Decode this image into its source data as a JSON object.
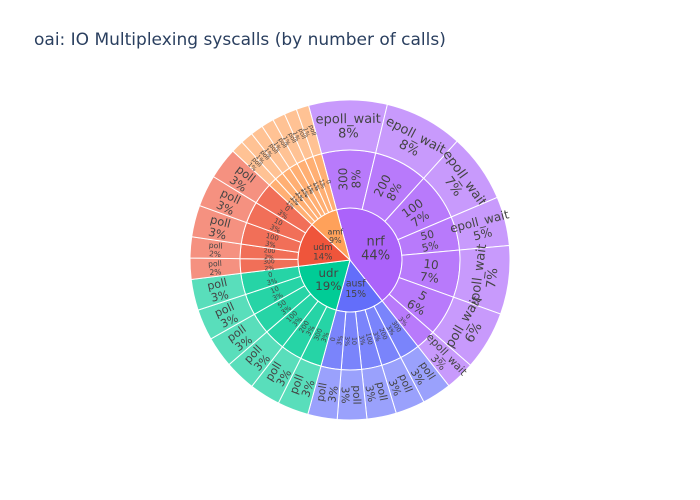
{
  "title": "oai: IO Multiplexing syscalls (by number of calls)",
  "chart_data": {
    "type": "sunburst",
    "title": "oai: IO Multiplexing syscalls (by number of calls)",
    "rings": [
      "service",
      "bucket",
      "syscall"
    ],
    "children": [
      {
        "label": "nrf",
        "text": "44%",
        "value": 44,
        "color": "#ab63fa",
        "children": [
          {
            "label": "300",
            "text": "8%",
            "value": 8,
            "children": [
              {
                "label": "epoll_wait",
                "text": "8%",
                "value": 8
              }
            ]
          },
          {
            "label": "200",
            "text": "8%",
            "value": 8,
            "children": [
              {
                "label": "epoll_wait",
                "text": "8%",
                "value": 8
              }
            ]
          },
          {
            "label": "100",
            "text": "7%",
            "value": 7,
            "children": [
              {
                "label": "epoll_wait",
                "text": "7%",
                "value": 7
              }
            ]
          },
          {
            "label": "50",
            "text": "5%",
            "value": 5,
            "children": [
              {
                "label": "epoll_wait",
                "text": "5%",
                "value": 5
              }
            ]
          },
          {
            "label": "10",
            "text": "7%",
            "value": 7,
            "children": [
              {
                "label": "epoll_wait",
                "text": "7%",
                "value": 7
              }
            ]
          },
          {
            "label": "5",
            "text": "6%",
            "value": 6,
            "children": [
              {
                "label": "epoll_wait",
                "text": "6%",
                "value": 6
              }
            ]
          },
          {
            "label": "0",
            "text": "3%",
            "value": 3,
            "children": [
              {
                "label": "epoll_wait",
                "text": "3%",
                "value": 3
              }
            ]
          }
        ]
      },
      {
        "label": "ausf",
        "text": "15%",
        "value": 15,
        "color": "#636efa",
        "children": [
          {
            "label": "300",
            "text": "3%",
            "value": 3,
            "children": [
              {
                "label": "poll",
                "text": "3%",
                "value": 3
              }
            ]
          },
          {
            "label": "200",
            "text": "3%",
            "value": 3,
            "children": [
              {
                "label": "poll",
                "text": "3%",
                "value": 3
              }
            ]
          },
          {
            "label": "100",
            "text": "3%",
            "value": 3,
            "children": [
              {
                "label": "poll",
                "text": "3%",
                "value": 3
              }
            ]
          },
          {
            "label": "10",
            "text": "3%",
            "value": 3,
            "children": [
              {
                "label": "poll",
                "text": "3%",
                "value": 3
              }
            ]
          },
          {
            "label": "0",
            "text": "3%",
            "value": 3,
            "children": [
              {
                "label": "poll",
                "text": "3%",
                "value": 3
              }
            ]
          }
        ]
      },
      {
        "label": "udr",
        "text": "19%",
        "value": 19,
        "color": "#00cc96",
        "children": [
          {
            "label": "300",
            "text": "3%",
            "value": 3,
            "children": [
              {
                "label": "poll",
                "text": "3%",
                "value": 3
              }
            ]
          },
          {
            "label": "200",
            "text": "3%",
            "value": 3,
            "children": [
              {
                "label": "poll",
                "text": "3%",
                "value": 3
              }
            ]
          },
          {
            "label": "100",
            "text": "3%",
            "value": 3,
            "children": [
              {
                "label": "poll",
                "text": "3%",
                "value": 3
              }
            ]
          },
          {
            "label": "50",
            "text": "3%",
            "value": 3,
            "children": [
              {
                "label": "poll",
                "text": "3%",
                "value": 3
              }
            ]
          },
          {
            "label": "10",
            "text": "3%",
            "value": 3,
            "children": [
              {
                "label": "poll",
                "text": "3%",
                "value": 3
              }
            ]
          },
          {
            "label": "0",
            "text": "3%",
            "value": 3,
            "children": [
              {
                "label": "poll",
                "text": "3%",
                "value": 3
              }
            ]
          }
        ]
      },
      {
        "label": "udm",
        "text": "14%",
        "value": 14,
        "color": "#ef553b",
        "children": [
          {
            "label": "300",
            "text": "2%",
            "value": 2,
            "children": [
              {
                "label": "poll",
                "text": "2%",
                "value": 2
              }
            ]
          },
          {
            "label": "200",
            "text": "2%",
            "value": 2,
            "children": [
              {
                "label": "poll",
                "text": "2%",
                "value": 2
              }
            ]
          },
          {
            "label": "100",
            "text": "3%",
            "value": 3,
            "children": [
              {
                "label": "poll",
                "text": "3%",
                "value": 3
              }
            ]
          },
          {
            "label": "10",
            "text": "3%",
            "value": 3,
            "children": [
              {
                "label": "poll",
                "text": "3%",
                "value": 3
              }
            ]
          },
          {
            "label": "0",
            "text": "3%",
            "value": 3,
            "children": [
              {
                "label": "poll",
                "text": "3%",
                "value": 3
              }
            ]
          }
        ]
      },
      {
        "label": "amf",
        "text": "9%",
        "value": 9,
        "color": "#ffa15a",
        "children": [
          {
            "label": "300",
            "text": "1%",
            "value": 1,
            "children": [
              {
                "label": "poll",
                "text": "1%",
                "value": 1
              }
            ]
          },
          {
            "label": "200",
            "text": "1%",
            "value": 1,
            "children": [
              {
                "label": "poll",
                "text": "1%",
                "value": 1
              }
            ]
          },
          {
            "label": "100",
            "text": "1%",
            "value": 1,
            "children": [
              {
                "label": "poll",
                "text": "1%",
                "value": 1
              }
            ]
          },
          {
            "label": "50",
            "text": "1%",
            "value": 1,
            "children": [
              {
                "label": "poll",
                "text": "1%",
                "value": 1
              }
            ]
          },
          {
            "label": "10",
            "text": "1%",
            "value": 1,
            "children": [
              {
                "label": "poll",
                "text": "1%",
                "value": 1
              }
            ]
          },
          {
            "label": "5",
            "text": "1%",
            "value": 1,
            "children": [
              {
                "label": "poll",
                "text": "1%",
                "value": 1
              }
            ]
          },
          {
            "label": "0",
            "text": "1%",
            "value": 1,
            "children": [
              {
                "label": "poll",
                "text": "1%",
                "value": 1
              }
            ]
          }
        ]
      }
    ]
  }
}
